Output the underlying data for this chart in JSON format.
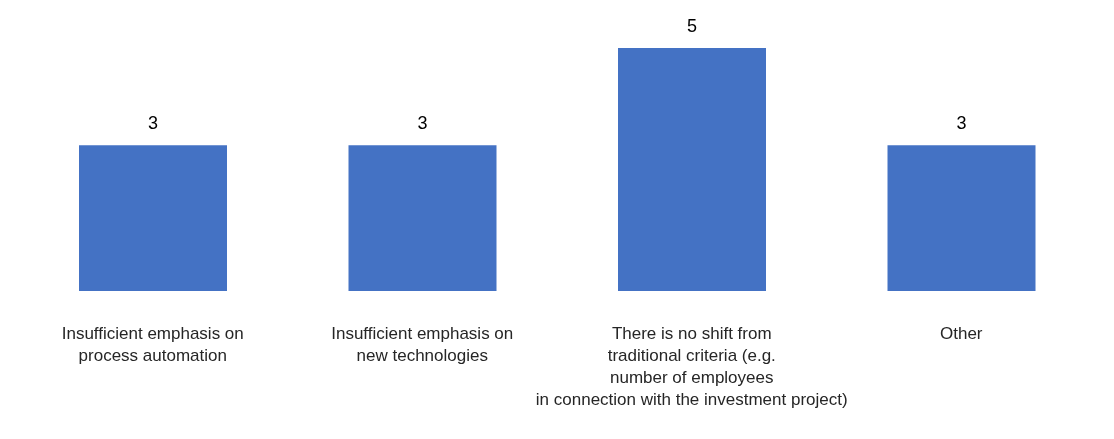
{
  "chart_data": {
    "type": "bar",
    "categories": [
      "Insufficient emphasis on\nprocess automation",
      "Insufficient emphasis on\nnew  technologies",
      "There is no shift from\ntraditional criteria (e.g.\nnumber of employees\nin connection with the investment project)",
      "Other"
    ],
    "values": [
      3,
      3,
      5,
      3
    ],
    "color": "#4472c4",
    "data_labels": true
  }
}
